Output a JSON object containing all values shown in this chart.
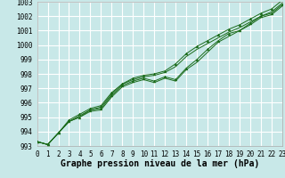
{
  "bg_color": "#c8e8e8",
  "grid_color": "#ffffff",
  "line_color": "#1a6b1a",
  "marker_color": "#1a6b1a",
  "xlabel": "Graphe pression niveau de la mer (hPa)",
  "ylim": [
    993,
    1003
  ],
  "xlim": [
    0,
    23
  ],
  "yticks": [
    993,
    994,
    995,
    996,
    997,
    998,
    999,
    1000,
    1001,
    1002,
    1003
  ],
  "xticks": [
    0,
    1,
    2,
    3,
    4,
    5,
    6,
    7,
    8,
    9,
    10,
    11,
    12,
    13,
    14,
    15,
    16,
    17,
    18,
    19,
    20,
    21,
    22,
    23
  ],
  "series": [
    [
      993.3,
      993.1,
      993.9,
      994.7,
      995.0,
      995.4,
      995.5,
      996.4,
      997.1,
      997.4,
      997.6,
      997.4,
      997.7,
      997.5,
      998.3,
      998.8,
      999.5,
      1000.2,
      1000.6,
      1001.0,
      1001.4,
      1001.9,
      1002.1,
      1002.7
    ],
    [
      993.3,
      993.1,
      993.9,
      994.7,
      995.0,
      995.5,
      995.6,
      996.5,
      997.2,
      997.5,
      997.7,
      997.5,
      997.8,
      997.6,
      998.4,
      999.0,
      999.7,
      1000.3,
      1000.8,
      1001.0,
      1001.5,
      1002.0,
      1002.2,
      1002.8
    ],
    [
      993.3,
      993.1,
      993.9,
      994.7,
      995.1,
      995.5,
      995.7,
      996.6,
      997.3,
      997.6,
      997.8,
      997.9,
      998.1,
      998.5,
      999.2,
      999.7,
      1000.1,
      1000.5,
      1000.9,
      1001.2,
      1001.6,
      1002.0,
      1002.3,
      1002.9
    ],
    [
      993.3,
      993.1,
      993.9,
      994.8,
      995.2,
      995.6,
      995.8,
      996.7,
      997.3,
      997.7,
      997.9,
      998.0,
      998.2,
      998.7,
      999.4,
      999.9,
      1000.3,
      1000.7,
      1001.1,
      1001.4,
      1001.8,
      1002.2,
      1002.5,
      1003.1
    ]
  ],
  "marker_series": [
    1,
    3
  ],
  "xlabel_fontsize": 7,
  "tick_fontsize": 5.5,
  "linewidth": 0.7,
  "markersize": 2.0
}
